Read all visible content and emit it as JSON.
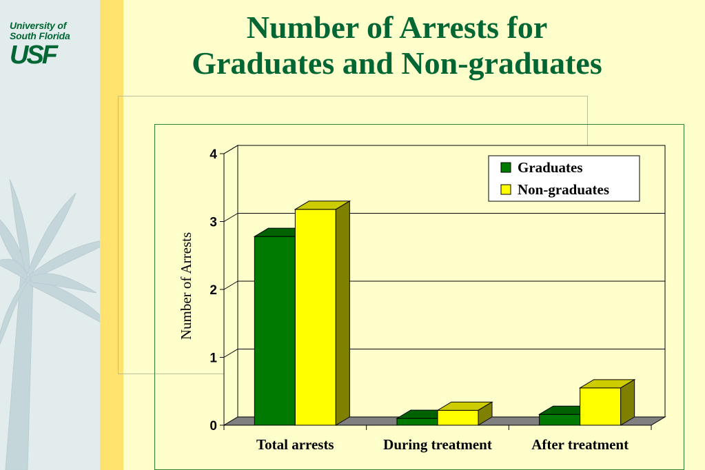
{
  "logo": {
    "line1": "University of",
    "line2": "South Florida",
    "mark": "USF"
  },
  "slide": {
    "title_line1": "Number of Arrests for",
    "title_line2": "Graduates and Non-graduates"
  },
  "colors": {
    "graduates": "#007a00",
    "non_graduates": "#ffff00",
    "title": "#006633"
  },
  "chart_data": {
    "type": "bar",
    "categories": [
      "Total arrests",
      "During treatment",
      "After treatment"
    ],
    "series": [
      {
        "name": "Graduates",
        "values": [
          2.78,
          0.1,
          0.16
        ]
      },
      {
        "name": "Non-graduates",
        "values": [
          3.18,
          0.22,
          0.55
        ]
      }
    ],
    "title": "",
    "xlabel": "",
    "ylabel": "Number of Arrests",
    "ylim": [
      0,
      4
    ],
    "yticks": [
      0,
      1,
      2,
      3,
      4
    ],
    "grid": true,
    "legend": "top-right"
  }
}
